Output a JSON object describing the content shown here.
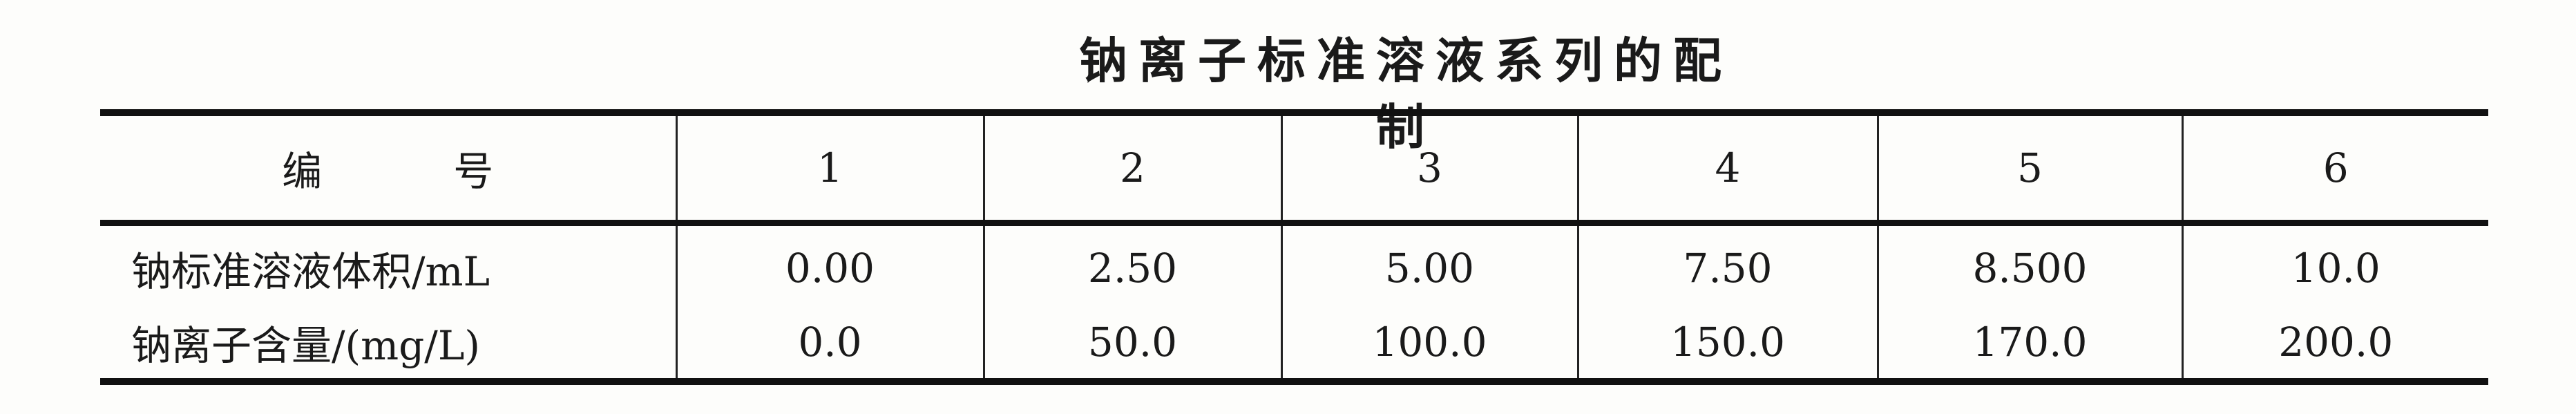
{
  "title": "钠离子标准溶液系列的配制",
  "table": {
    "header": {
      "label_a": "编",
      "label_b": "号",
      "numbers": [
        "1",
        "2",
        "3",
        "4",
        "5",
        "6"
      ]
    },
    "rows": [
      {
        "label": "钠标准溶液体积/mL",
        "values": [
          "0.00",
          "2.50",
          "5.00",
          "7.50",
          "8.500",
          "10.0"
        ]
      },
      {
        "label": "钠离子含量/(mg/L)",
        "values": [
          "0.0",
          "50.0",
          "100.0",
          "150.0",
          "170.0",
          "200.0"
        ]
      }
    ]
  }
}
